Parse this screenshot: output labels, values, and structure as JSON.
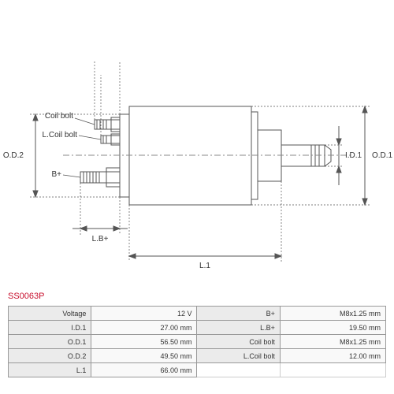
{
  "part_number": "SS0063P",
  "drawing": {
    "labels": {
      "od2": "O.D.2",
      "od1": "O.D.1",
      "id1": "I.D.1",
      "lb_plus": "L.B+",
      "l1": "L.1",
      "coil_bolt": "Coil bolt",
      "l_coil_bolt": "L.Coil bolt",
      "b_plus": "B+"
    },
    "stroke": "#555555",
    "stroke_width": 1,
    "background": "#ffffff"
  },
  "specs": {
    "rows": [
      {
        "l1": "Voltage",
        "v1": "12 V",
        "l2": "B+",
        "v2": "M8x1.25 mm"
      },
      {
        "l1": "I.D.1",
        "v1": "27.00 mm",
        "l2": "L.B+",
        "v2": "19.50 mm"
      },
      {
        "l1": "O.D.1",
        "v1": "56.50 mm",
        "l2": "Coil bolt",
        "v2": "M8x1.25 mm"
      },
      {
        "l1": "O.D.2",
        "v1": "49.50 mm",
        "l2": "L.Coil bolt",
        "v2": "12.00 mm"
      },
      {
        "l1": "L.1",
        "v1": "66.00 mm",
        "l2": "",
        "v2": ""
      }
    ]
  }
}
